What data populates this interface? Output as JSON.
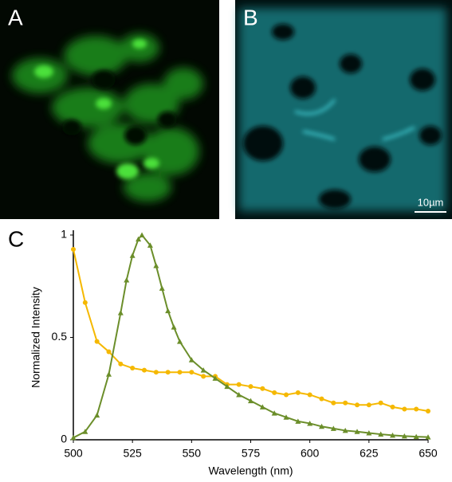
{
  "panels": {
    "a": "A",
    "b": "B",
    "c": "C"
  },
  "scale_bar": "10µm",
  "chart_data": {
    "type": "line",
    "xlabel": "Wavelength (nm)",
    "ylabel": "Normalized Intensity",
    "xlim": [
      500,
      650
    ],
    "ylim": [
      0,
      1
    ],
    "xticks": [
      500,
      525,
      550,
      575,
      600,
      625,
      650
    ],
    "yticks": [
      0,
      0.5,
      1
    ],
    "series": [
      {
        "color": "#f5b800",
        "marker": "circle",
        "x": [
          500,
          505,
          510,
          515,
          520,
          525,
          530,
          535,
          540,
          545,
          550,
          555,
          560,
          565,
          570,
          575,
          580,
          585,
          590,
          595,
          600,
          605,
          610,
          615,
          620,
          625,
          630,
          635,
          640,
          645,
          650
        ],
        "values": [
          0.93,
          0.67,
          0.48,
          0.43,
          0.37,
          0.35,
          0.34,
          0.33,
          0.33,
          0.33,
          0.33,
          0.31,
          0.31,
          0.27,
          0.27,
          0.26,
          0.25,
          0.23,
          0.22,
          0.23,
          0.22,
          0.2,
          0.18,
          0.18,
          0.17,
          0.17,
          0.18,
          0.16,
          0.15,
          0.15,
          0.14
        ]
      },
      {
        "color": "#6b8e2a",
        "marker": "triangle",
        "x": [
          500,
          505,
          510,
          515,
          520,
          522.5,
          525,
          527.5,
          529,
          532.5,
          535,
          537.5,
          540,
          542.5,
          545,
          550,
          555,
          560,
          565,
          570,
          575,
          580,
          585,
          590,
          595,
          600,
          605,
          610,
          615,
          620,
          625,
          630,
          635,
          640,
          645,
          650
        ],
        "values": [
          0.01,
          0.04,
          0.12,
          0.32,
          0.62,
          0.78,
          0.9,
          0.98,
          1,
          0.95,
          0.85,
          0.74,
          0.63,
          0.55,
          0.48,
          0.39,
          0.34,
          0.3,
          0.26,
          0.22,
          0.19,
          0.16,
          0.13,
          0.11,
          0.09,
          0.08,
          0.065,
          0.055,
          0.045,
          0.04,
          0.033,
          0.027,
          0.022,
          0.018,
          0.015,
          0.013
        ]
      }
    ]
  }
}
